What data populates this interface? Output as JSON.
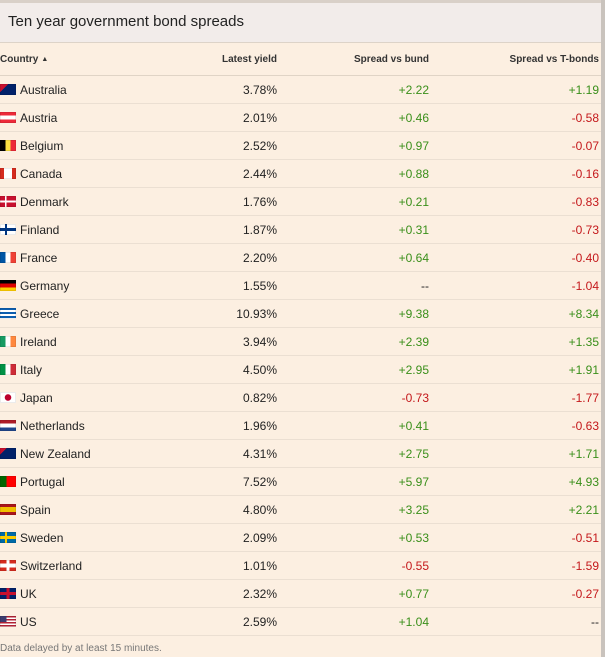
{
  "title": "Ten year government bond spreads",
  "columns": {
    "country": "Country",
    "yield": "Latest yield",
    "bund": "Spread vs bund",
    "tbonds": "Spread vs T-bonds"
  },
  "sort_indicator": "▲",
  "rows": [
    {
      "country": "Australia",
      "yield": "3.78%",
      "bund": "+2.22",
      "tbonds": "+1.19",
      "flag": "australia-flag"
    },
    {
      "country": "Austria",
      "yield": "2.01%",
      "bund": "+0.46",
      "tbonds": "-0.58",
      "flag": "austria-flag"
    },
    {
      "country": "Belgium",
      "yield": "2.52%",
      "bund": "+0.97",
      "tbonds": "-0.07",
      "flag": "belgium-flag"
    },
    {
      "country": "Canada",
      "yield": "2.44%",
      "bund": "+0.88",
      "tbonds": "-0.16",
      "flag": "canada-flag"
    },
    {
      "country": "Denmark",
      "yield": "1.76%",
      "bund": "+0.21",
      "tbonds": "-0.83",
      "flag": "denmark-flag"
    },
    {
      "country": "Finland",
      "yield": "1.87%",
      "bund": "+0.31",
      "tbonds": "-0.73",
      "flag": "finland-flag"
    },
    {
      "country": "France",
      "yield": "2.20%",
      "bund": "+0.64",
      "tbonds": "-0.40",
      "flag": "france-flag"
    },
    {
      "country": "Germany",
      "yield": "1.55%",
      "bund": "--",
      "tbonds": "-1.04",
      "flag": "germany-flag"
    },
    {
      "country": "Greece",
      "yield": "10.93%",
      "bund": "+9.38",
      "tbonds": "+8.34",
      "flag": "greece-flag"
    },
    {
      "country": "Ireland",
      "yield": "3.94%",
      "bund": "+2.39",
      "tbonds": "+1.35",
      "flag": "ireland-flag"
    },
    {
      "country": "Italy",
      "yield": "4.50%",
      "bund": "+2.95",
      "tbonds": "+1.91",
      "flag": "italy-flag"
    },
    {
      "country": "Japan",
      "yield": "0.82%",
      "bund": "-0.73",
      "tbonds": "-1.77",
      "flag": "japan-flag"
    },
    {
      "country": "Netherlands",
      "yield": "1.96%",
      "bund": "+0.41",
      "tbonds": "-0.63",
      "flag": "netherlands-flag"
    },
    {
      "country": "New Zealand",
      "yield": "4.31%",
      "bund": "+2.75",
      "tbonds": "+1.71",
      "flag": "new-zealand-flag"
    },
    {
      "country": "Portugal",
      "yield": "7.52%",
      "bund": "+5.97",
      "tbonds": "+4.93",
      "flag": "portugal-flag"
    },
    {
      "country": "Spain",
      "yield": "4.80%",
      "bund": "+3.25",
      "tbonds": "+2.21",
      "flag": "spain-flag"
    },
    {
      "country": "Sweden",
      "yield": "2.09%",
      "bund": "+0.53",
      "tbonds": "-0.51",
      "flag": "sweden-flag"
    },
    {
      "country": "Switzerland",
      "yield": "1.01%",
      "bund": "-0.55",
      "tbonds": "-1.59",
      "flag": "switzerland-flag"
    },
    {
      "country": "UK",
      "yield": "2.32%",
      "bund": "+0.77",
      "tbonds": "-0.27",
      "flag": "uk-flag"
    },
    {
      "country": "US",
      "yield": "2.59%",
      "bund": "+1.04",
      "tbonds": "--",
      "flag": "us-flag"
    }
  ],
  "footnote": "Data delayed by at least 15 minutes.",
  "colors": {
    "positive": "#3a8f1a",
    "negative": "#c4181b",
    "background": "#fcefe1",
    "header": "#f2ecea"
  }
}
